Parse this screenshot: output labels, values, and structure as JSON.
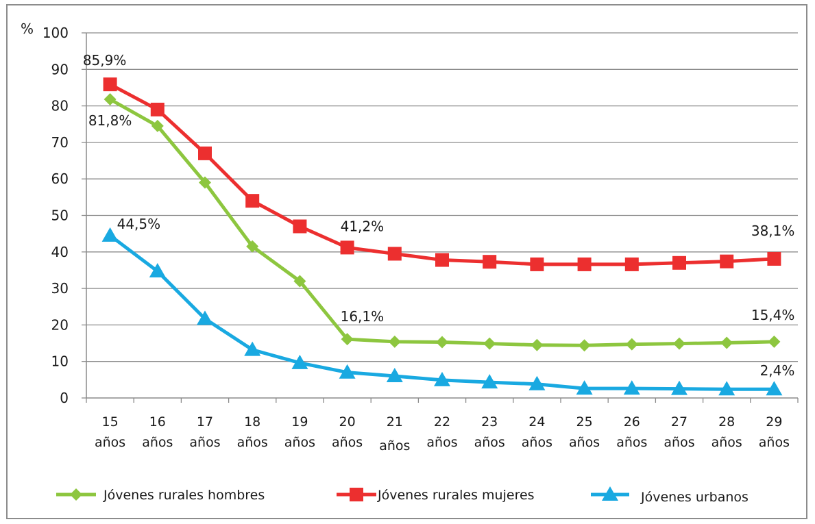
{
  "chart_data": {
    "type": "line",
    "ylabel": "%",
    "ylim": [
      0,
      100
    ],
    "yticks": [
      "0",
      "10",
      "20",
      "30",
      "40",
      "50",
      "60",
      "70",
      "80",
      "90",
      "100"
    ],
    "categories": [
      [
        "15",
        "años"
      ],
      [
        "16",
        "años"
      ],
      [
        "17",
        "años"
      ],
      [
        "18",
        "años"
      ],
      [
        "19",
        "años"
      ],
      [
        "20",
        "años"
      ],
      [
        "21",
        "años"
      ],
      [
        "22",
        "años"
      ],
      [
        "23",
        "años"
      ],
      [
        "24",
        "años"
      ],
      [
        "25",
        "años"
      ],
      [
        "26",
        "años"
      ],
      [
        "27",
        "años"
      ],
      [
        "28",
        "años"
      ],
      [
        "29",
        "años"
      ]
    ],
    "grid": true,
    "legend_position": "bottom",
    "series": [
      {
        "name": "Jóvenes rurales hombres",
        "color": "#8dc63f",
        "marker": "diamond",
        "values": [
          81.8,
          74.5,
          59.0,
          41.5,
          32.0,
          16.1,
          15.4,
          15.3,
          14.9,
          14.5,
          14.4,
          14.7,
          14.9,
          15.1,
          15.4
        ],
        "labels": [
          {
            "index": 0,
            "text": "81,8%"
          },
          {
            "index": 5,
            "text": "16,1%"
          },
          {
            "index": 14,
            "text": "15,4%"
          }
        ]
      },
      {
        "name": "Jóvenes rurales mujeres",
        "color": "#ec2f2f",
        "marker": "square",
        "values": [
          85.9,
          79.0,
          67.0,
          54.0,
          47.0,
          41.2,
          39.5,
          37.8,
          37.3,
          36.6,
          36.6,
          36.6,
          37.0,
          37.4,
          38.1
        ],
        "labels": [
          {
            "index": 0,
            "text": "85,9%"
          },
          {
            "index": 5,
            "text": "41,2%"
          },
          {
            "index": 14,
            "text": "38,1%"
          }
        ]
      },
      {
        "name": "Jóvenes urbanos",
        "color": "#19a9e1",
        "marker": "triangle",
        "values": [
          44.5,
          34.7,
          21.7,
          13.2,
          9.6,
          7.0,
          6.0,
          4.9,
          4.3,
          3.8,
          2.6,
          2.6,
          2.5,
          2.4,
          2.4
        ],
        "labels": [
          {
            "index": 0,
            "text": "44,5%"
          },
          {
            "index": 14,
            "text": "2,4%"
          }
        ]
      }
    ]
  }
}
